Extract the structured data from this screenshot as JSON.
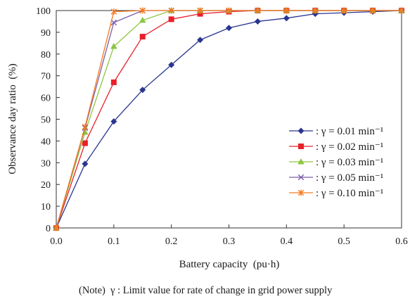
{
  "chart_data": {
    "type": "line",
    "xlabel": "Battery capacity (pu·h)",
    "ylabel": "Observance day ratio (%)",
    "xlim": [
      0.0,
      0.6
    ],
    "ylim": [
      0,
      100
    ],
    "x_ticks": [
      "0.0",
      "0.1",
      "0.2",
      "0.3",
      "0.4",
      "0.5",
      "0.6"
    ],
    "y_ticks": [
      "0",
      "10",
      "20",
      "30",
      "40",
      "50",
      "60",
      "70",
      "80",
      "90",
      "100"
    ],
    "x": [
      0.0,
      0.05,
      0.1,
      0.15,
      0.2,
      0.25,
      0.3,
      0.35,
      0.4,
      0.45,
      0.5,
      0.55,
      0.6
    ],
    "legend_position": "right",
    "grid": false,
    "series": [
      {
        "name": ": γ = 0.01 min⁻¹",
        "color": "#2b3590",
        "marker": "diamond",
        "values": [
          0,
          29.5,
          49,
          63.5,
          75,
          86.5,
          92,
          95,
          96.5,
          98.5,
          99,
          99.5,
          100
        ]
      },
      {
        "name": ": γ = 0.02 min⁻¹",
        "color": "#e8202a",
        "marker": "square",
        "values": [
          0,
          39,
          67,
          88,
          96,
          98.5,
          99.5,
          100,
          100,
          100,
          100,
          100,
          100
        ]
      },
      {
        "name": ": γ = 0.03 min⁻¹",
        "color": "#8cc63f",
        "marker": "triangle",
        "values": [
          0,
          44,
          83.5,
          95.5,
          100,
          100,
          100,
          100,
          100,
          100,
          100,
          100,
          100
        ]
      },
      {
        "name": ": γ = 0.05 min⁻¹",
        "color": "#7b5ea7",
        "marker": "x",
        "values": [
          0,
          46,
          94.5,
          100,
          100,
          100,
          100,
          100,
          100,
          100,
          100,
          100,
          100
        ]
      },
      {
        "name": ": γ = 0.10 min⁻¹",
        "color": "#f47b20",
        "marker": "star",
        "values": [
          0,
          46.5,
          99.5,
          100,
          100,
          100,
          100,
          100,
          100,
          100,
          100,
          100,
          100
        ]
      }
    ],
    "note": "(Note) γ : Limit value for rate of change in grid power supply"
  }
}
